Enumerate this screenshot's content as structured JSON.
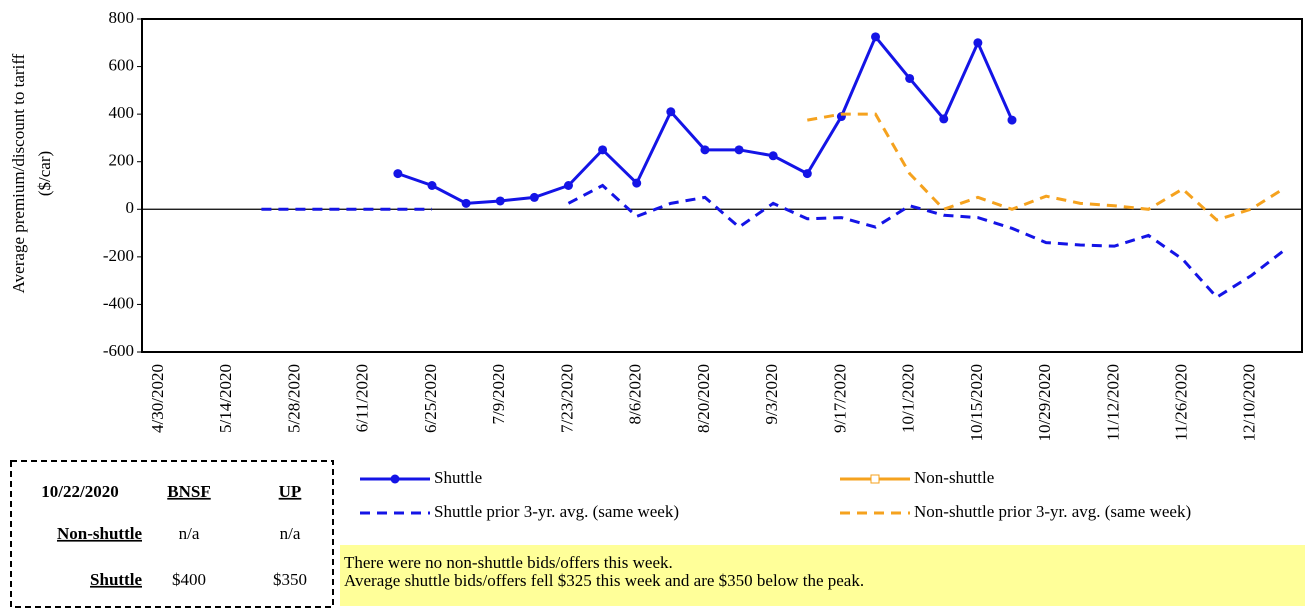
{
  "chart_data": {
    "type": "line",
    "ylabel": [
      "Average premium/discount  to tariff",
      "($/car)"
    ],
    "categories": [
      "4/30/2020",
      null,
      "5/14/2020",
      null,
      "5/28/2020",
      null,
      "6/11/2020",
      null,
      "6/25/2020",
      null,
      "7/9/2020",
      null,
      "7/23/2020",
      null,
      "8/6/2020",
      null,
      "8/20/2020",
      null,
      "9/3/2020",
      null,
      "9/17/2020",
      null,
      "10/1/2020",
      null,
      "10/15/2020",
      null,
      "10/29/2020",
      null,
      "11/12/2020",
      null,
      "11/26/2020",
      null,
      "12/10/2020",
      null
    ],
    "series": [
      {
        "name": "Shuttle",
        "color": "#1414e6",
        "dash": false,
        "marker": "circle",
        "values": [
          null,
          null,
          null,
          null,
          null,
          null,
          null,
          150,
          100,
          25,
          35,
          50,
          100,
          250,
          110,
          410,
          250,
          250,
          225,
          150,
          390,
          725,
          550,
          380,
          700,
          375,
          null,
          null,
          null,
          null,
          null,
          null,
          null,
          null
        ]
      },
      {
        "name": "Non-shuttle",
        "color": "#f5a21e",
        "dash": false,
        "marker": "square",
        "values": [
          null,
          null,
          null,
          null,
          null,
          null,
          null,
          null,
          null,
          null,
          null,
          null,
          null,
          null,
          null,
          null,
          null,
          null,
          null,
          null,
          null,
          null,
          null,
          null,
          null,
          null,
          null,
          null,
          null,
          null,
          null,
          null,
          null,
          null
        ]
      },
      {
        "name": "Shuttle prior 3-yr. avg. (same week)",
        "color": "#1414e6",
        "dash": true,
        "marker": "none",
        "values": [
          null,
          null,
          null,
          0,
          0,
          0,
          0,
          0,
          0,
          null,
          null,
          null,
          25,
          100,
          -30,
          25,
          50,
          -75,
          25,
          -40,
          -35,
          -75,
          15,
          -25,
          -35,
          -80,
          -140,
          -150,
          -155,
          -110,
          -210,
          -370,
          -280,
          -170
        ]
      },
      {
        "name": "Non-shuttle prior 3-yr. avg. (same week)",
        "color": "#f5a21e",
        "dash": true,
        "marker": "none",
        "values": [
          null,
          null,
          null,
          null,
          null,
          null,
          null,
          null,
          null,
          null,
          null,
          null,
          null,
          null,
          null,
          null,
          null,
          null,
          null,
          375,
          400,
          400,
          150,
          0,
          50,
          0,
          55,
          25,
          15,
          0,
          85,
          -45,
          0,
          90
        ]
      }
    ],
    "ylim": [
      -600,
      800
    ],
    "yticks": [
      -600,
      -400,
      -200,
      0,
      200,
      400,
      600,
      800
    ],
    "grid": false,
    "zero_line": true
  },
  "table": {
    "header": [
      "10/22/2020",
      "BNSF",
      "UP"
    ],
    "rows": [
      [
        "Non-shuttle",
        "n/a",
        "n/a"
      ],
      [
        "Shuttle",
        "$400",
        "$350"
      ]
    ]
  },
  "note": [
    "There were no non-shuttle bids/offers this week.",
    "Average shuttle bids/offers fell $325 this week and are $350 below the peak."
  ]
}
